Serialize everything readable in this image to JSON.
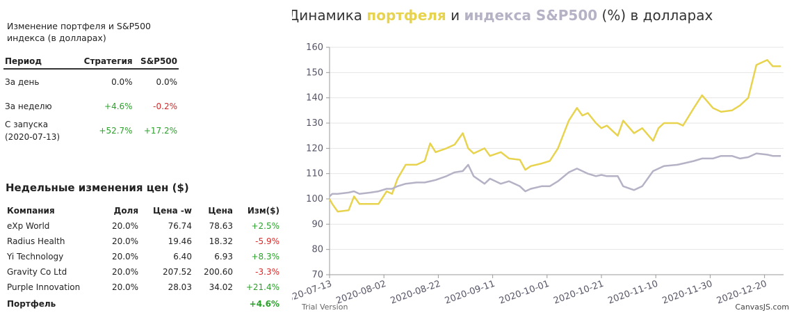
{
  "summary": {
    "title": "Изменение портфеля и S&P500 индекса (в долларах)",
    "headers": [
      "Период",
      "Стратегия",
      "S&P500"
    ],
    "rows": [
      [
        "За день",
        "0.0%",
        "0.0%"
      ],
      [
        "За неделю",
        "+4.6%",
        "-0.2%"
      ],
      [
        "С запуска (2020-07-13)",
        "+52.7%",
        "+17.2%"
      ]
    ]
  },
  "weekly": {
    "title": "Недельные изменения цен ($)",
    "headers": [
      "Компания",
      "Доля",
      "Цена -w",
      "Цена",
      "Изм($)"
    ],
    "rows": [
      [
        "eXp World",
        "20.0%",
        "76.74",
        "78.63",
        "+2.5%"
      ],
      [
        "Radius Health",
        "20.0%",
        "19.46",
        "18.32",
        "-5.9%"
      ],
      [
        "Yi Technology",
        "20.0%",
        "6.40",
        "6.93",
        "+8.3%"
      ],
      [
        "Gravity Co Ltd",
        "20.0%",
        "207.52",
        "200.60",
        "-3.3%"
      ],
      [
        "Purple Innovation",
        "20.0%",
        "28.03",
        "34.02",
        "+21.4%"
      ]
    ],
    "total": [
      "Портфель",
      "+4.6%"
    ]
  },
  "chart_data": {
    "type": "line",
    "title": [
      "Динамика ",
      "портфеля",
      " и ",
      "индекса S&P500",
      " (%) в долларах"
    ],
    "x": [
      "2020-07-13",
      "2020-07-14",
      "2020-07-16",
      "2020-07-20",
      "2020-07-22",
      "2020-07-24",
      "2020-07-28",
      "2020-07-31",
      "2020-08-03",
      "2020-08-05",
      "2020-08-07",
      "2020-08-10",
      "2020-08-14",
      "2020-08-17",
      "2020-08-19",
      "2020-08-21",
      "2020-08-25",
      "2020-08-28",
      "2020-08-31",
      "2020-09-02",
      "2020-09-04",
      "2020-09-08",
      "2020-09-10",
      "2020-09-14",
      "2020-09-17",
      "2020-09-21",
      "2020-09-23",
      "2020-09-25",
      "2020-09-29",
      "2020-10-02",
      "2020-10-05",
      "2020-10-09",
      "2020-10-12",
      "2020-10-14",
      "2020-10-16",
      "2020-10-19",
      "2020-10-21",
      "2020-10-23",
      "2020-10-27",
      "2020-10-29",
      "2020-11-02",
      "2020-11-05",
      "2020-11-09",
      "2020-11-11",
      "2020-11-13",
      "2020-11-18",
      "2020-11-20",
      "2020-11-24",
      "2020-11-27",
      "2020-12-01",
      "2020-12-04",
      "2020-12-08",
      "2020-12-11",
      "2020-12-14",
      "2020-12-17",
      "2020-12-21",
      "2020-12-23",
      "2020-12-26"
    ],
    "series": [
      {
        "name": "портфеля",
        "color": "#e8d34f",
        "values": [
          100,
          98,
          95,
          95.5,
          101,
          98,
          98,
          98,
          103,
          102,
          108,
          113.5,
          113.5,
          115,
          122,
          118.5,
          120,
          121.5,
          126,
          120,
          118,
          120,
          117,
          118.5,
          116,
          115.5,
          111.5,
          113,
          114,
          115,
          120,
          131,
          136,
          133,
          134,
          130,
          128,
          129,
          125,
          131,
          126,
          128,
          123,
          128,
          130,
          130,
          129,
          136,
          141,
          136,
          134.5,
          135,
          137,
          140,
          153,
          155,
          152.5,
          152.5
        ]
      },
      {
        "name": "индекса S&P500",
        "color": "#b5b2c6",
        "values": [
          101,
          102,
          102,
          102.5,
          103,
          102,
          102.5,
          103,
          104,
          104,
          105,
          106,
          106.5,
          106.5,
          107,
          107.5,
          109,
          110.5,
          111,
          113.5,
          109,
          106,
          108,
          106,
          107,
          105,
          103,
          104,
          105,
          105,
          107,
          110.5,
          112,
          111,
          110,
          109,
          109.5,
          109,
          109,
          105,
          103.5,
          105,
          111,
          112,
          113,
          113.5,
          114,
          115,
          116,
          116,
          117,
          117,
          116,
          116.5,
          118,
          117.5,
          117,
          117
        ]
      }
    ],
    "xlim": [
      "2020-07-13",
      "2020-12-27"
    ],
    "xticks": [
      "2020-07-13",
      "2020-08-02",
      "2020-08-22",
      "2020-09-11",
      "2020-10-01",
      "2020-10-21",
      "2020-11-10",
      "2020-11-30",
      "2020-12-20"
    ],
    "ylim": [
      70,
      160
    ],
    "yticks": [
      70,
      80,
      90,
      100,
      110,
      120,
      130,
      140,
      150,
      160
    ],
    "grid": true,
    "watermark": "Trial Version",
    "credit": "CanvasJS.com"
  }
}
